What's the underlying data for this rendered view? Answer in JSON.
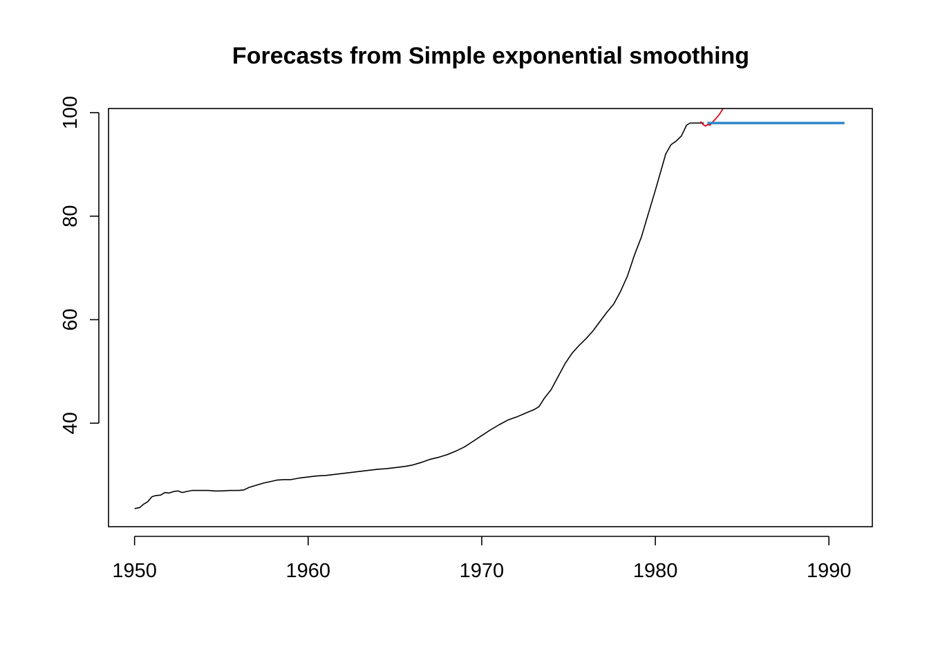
{
  "chart_data": {
    "type": "line",
    "title": "Forecasts from Simple exponential smoothing",
    "xlabel": "",
    "ylabel": "",
    "xlim": [
      1948.5,
      1992.5
    ],
    "ylim": [
      20,
      100.8
    ],
    "x_ticks": [
      1950,
      1960,
      1970,
      1980,
      1990
    ],
    "y_ticks": [
      40,
      60,
      80,
      100
    ],
    "grid": false,
    "legend": "none",
    "colors": {
      "actual": "#000000",
      "fitted": "#e0001a",
      "forecast": "#2e86c8",
      "axis": "#000000",
      "background": "#ffffff"
    },
    "series": [
      {
        "role": "observed",
        "x": [
          1950.0,
          1950.3,
          1950.5,
          1950.75,
          1951.0,
          1951.2,
          1951.5,
          1951.75,
          1952.0,
          1952.25,
          1952.5,
          1952.75,
          1953.0,
          1953.3,
          1953.6,
          1953.9,
          1954.25,
          1954.6,
          1955.0,
          1955.5,
          1956.0,
          1956.3,
          1956.6,
          1957.0,
          1957.4,
          1957.8,
          1958.2,
          1958.6,
          1959.0,
          1959.5,
          1960.0,
          1960.5,
          1961.0,
          1961.5,
          1962.0,
          1962.5,
          1963.0,
          1963.5,
          1964.0,
          1964.5,
          1965.0,
          1965.5,
          1966.0,
          1966.5,
          1967.0,
          1967.5,
          1968.0,
          1968.5,
          1969.0,
          1969.5,
          1970.0,
          1970.5,
          1971.0,
          1971.5,
          1972.0,
          1972.5,
          1973.0,
          1973.3,
          1973.6,
          1974.0,
          1974.4,
          1974.8,
          1975.2,
          1975.6,
          1976.0,
          1976.4,
          1976.8,
          1977.2,
          1977.6,
          1978.0,
          1978.4,
          1978.8,
          1979.2,
          1979.6,
          1980.0,
          1980.3,
          1980.6,
          1980.9,
          1981.2,
          1981.5,
          1981.8,
          1982.0,
          1982.2,
          1982.4,
          1982.6,
          1982.8
        ],
        "values": [
          23.5,
          23.7,
          24.3,
          24.8,
          25.8,
          26.0,
          26.1,
          26.6,
          26.5,
          26.8,
          26.9,
          26.6,
          26.8,
          27.0,
          27.0,
          27.0,
          27.0,
          26.9,
          26.9,
          27.0,
          27.0,
          27.1,
          27.6,
          28.0,
          28.4,
          28.7,
          29.0,
          29.1,
          29.1,
          29.4,
          29.6,
          29.8,
          29.9,
          30.1,
          30.3,
          30.5,
          30.7,
          30.9,
          31.1,
          31.2,
          31.4,
          31.6,
          31.9,
          32.4,
          33.0,
          33.4,
          33.9,
          34.6,
          35.4,
          36.5,
          37.6,
          38.7,
          39.7,
          40.6,
          41.2,
          41.9,
          42.6,
          43.2,
          44.8,
          46.5,
          49.0,
          51.5,
          53.5,
          55.0,
          56.3,
          57.8,
          59.6,
          61.4,
          63.0,
          65.5,
          68.5,
          72.5,
          76.0,
          80.5,
          85.0,
          88.5,
          92.0,
          93.8,
          94.5,
          95.5,
          97.6,
          98.0,
          98.0,
          98.0,
          98.0,
          98.0
        ],
        "label": ""
      },
      {
        "role": "fitted",
        "x": [
          1982.6,
          1982.75,
          1982.9,
          1983.0,
          1983.15,
          1983.3,
          1983.5,
          1983.7,
          1983.9
        ],
        "values": [
          98.3,
          97.7,
          97.4,
          97.7,
          97.6,
          98.2,
          98.9,
          99.7,
          100.8
        ],
        "label": ""
      },
      {
        "role": "forecast",
        "x": [
          1983.0,
          1990.9
        ],
        "values": [
          98.0,
          98.0
        ],
        "label": ""
      }
    ]
  }
}
